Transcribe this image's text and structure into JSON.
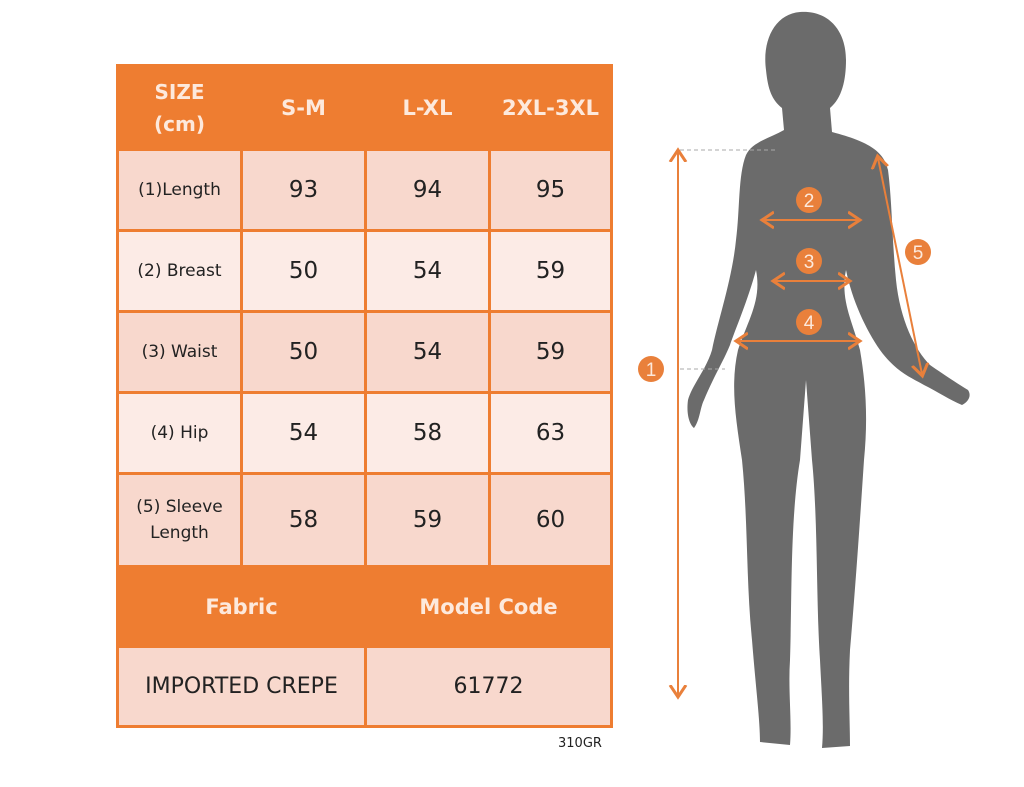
{
  "table": {
    "header": [
      "SIZE\n(cm)",
      "S-M",
      "L-XL",
      "2XL-3XL"
    ],
    "header_size": "SIZE",
    "header_unit": "(cm)",
    "rows": [
      {
        "label": "(1)Length",
        "values": [
          "93",
          "94",
          "95"
        ]
      },
      {
        "label": "(2) Breast",
        "values": [
          "50",
          "54",
          "59"
        ]
      },
      {
        "label": "(3) Waist",
        "values": [
          "50",
          "54",
          "59"
        ]
      },
      {
        "label": "(4) Hip",
        "values": [
          "54",
          "58",
          "63"
        ]
      },
      {
        "label_line1": "(5) Sleeve",
        "label_line2": "Length",
        "values": [
          "58",
          "59",
          "60"
        ]
      }
    ],
    "fabric_label": "Fabric",
    "model_code_label": "Model Code",
    "fabric_value": "IMPORTED CREPE",
    "model_code_value": "61772"
  },
  "product_code": "310GR",
  "figure": {
    "markers": [
      "1",
      "2",
      "3",
      "4",
      "5"
    ]
  },
  "colors": {
    "accent": "#ee7d31",
    "row_dark": "#f8d8cd",
    "row_light": "#fcebe6",
    "silhouette": "#6b6b6b"
  }
}
